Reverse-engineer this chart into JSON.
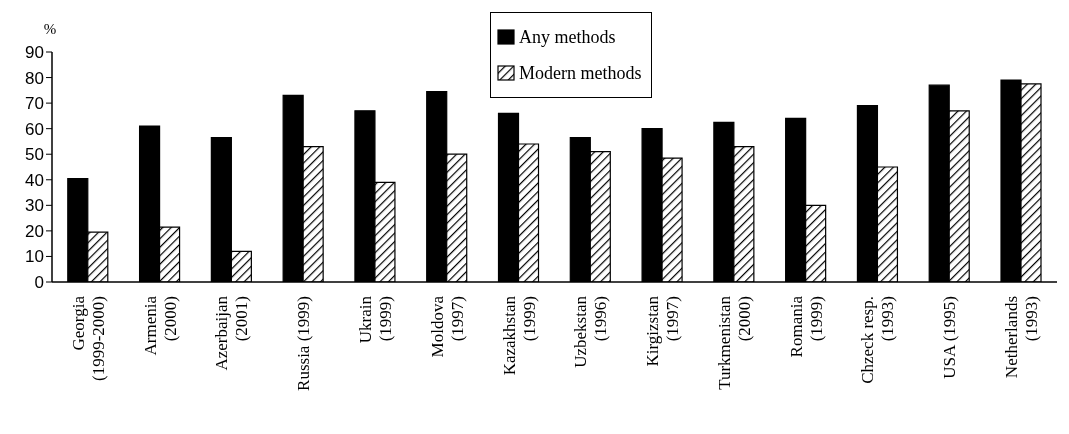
{
  "chart_data": {
    "type": "bar",
    "ylabel": "%",
    "categories": [
      "Georgia\n(1999-2000)",
      "Armenia\n(2000)",
      "Azerbaijan\n(2001)",
      "Russia (1999)",
      "Ukrain\n(1999)",
      "Moldova\n(1997)",
      "Kazakhstan\n(1999)",
      "Uzbekstan\n(1996)",
      "Kirgizstan\n(1997)",
      "Turkmenistan\n(2000)",
      "Romania\n(1999)",
      "Chzeck resp.\n(1993)",
      "USA (1995)",
      "Netherlands\n(1993)"
    ],
    "series": [
      {
        "name": "Any methods",
        "color": "#000000",
        "values": [
          40.5,
          61,
          56.5,
          73,
          67,
          74.5,
          66,
          56.5,
          60,
          62.5,
          64,
          69,
          77,
          79
        ]
      },
      {
        "name": "Modern methods",
        "color": "#000000",
        "values": [
          19.5,
          21.5,
          12,
          53,
          39,
          50,
          54,
          51,
          48.5,
          53,
          30,
          45,
          67,
          77.5
        ]
      }
    ],
    "ylim": [
      0,
      90
    ],
    "yticks": [
      0,
      10,
      20,
      30,
      40,
      50,
      60,
      70,
      80,
      90
    ],
    "grid": false,
    "legend": "top"
  }
}
